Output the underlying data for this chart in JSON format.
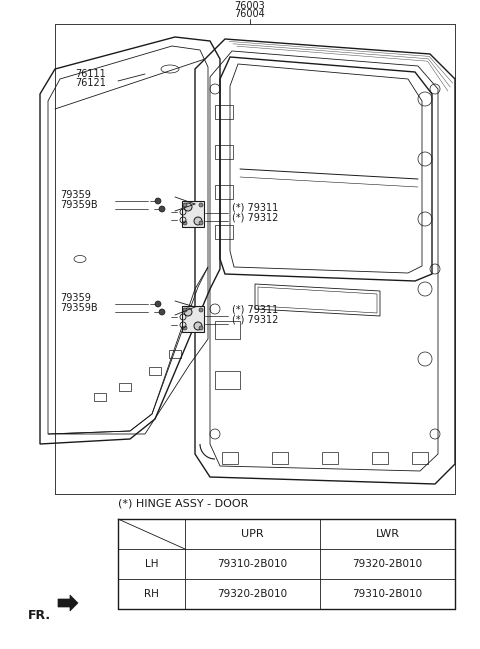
{
  "bg_color": "#ffffff",
  "line_color": "#1a1a1a",
  "label_color": "#444444",
  "figsize": [
    4.8,
    6.49
  ],
  "dpi": 100,
  "title_note": "(*) HINGE ASSY - DOOR",
  "table_headers": [
    "",
    "UPR",
    "LWR"
  ],
  "table_rows": [
    [
      "LH",
      "79310-2B010",
      "79320-2B010"
    ],
    [
      "RH",
      "79320-2B010",
      "79310-2B010"
    ]
  ]
}
